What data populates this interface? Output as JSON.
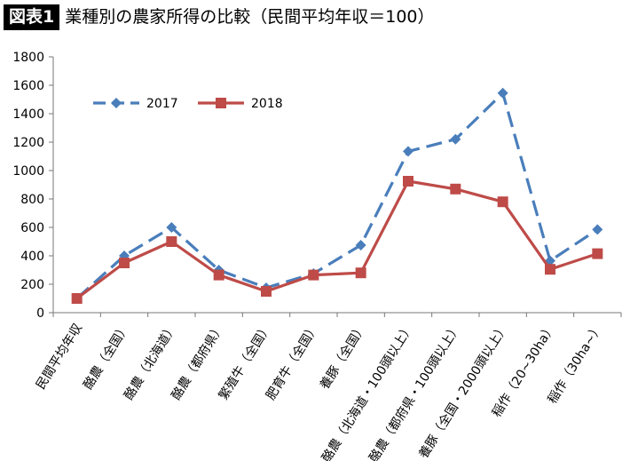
{
  "figure": {
    "badge": "図表1",
    "title": "業種別の農家所得の比較（民間平均年収＝100）"
  },
  "chart_data": {
    "type": "line",
    "title": "業種別の農家所得の比較（民間平均年収＝100）",
    "categories": [
      "民間平均年収",
      "酪農（全国）",
      "酪農（北海道）",
      "酪農（都府県）",
      "繁殖牛（全国）",
      "肥育牛（全国）",
      "養豚（全国）",
      "酪農（北海道・100頭以上）",
      "酪農（都府県・100頭以上）",
      "養豚（全国・2000頭以上）",
      "稲作（20~30ha）",
      "稲作（30ha~）"
    ],
    "series": [
      {
        "name": "2017",
        "color": "#4a7ebb",
        "marker": "diamond",
        "dash": "dashed",
        "values": [
          100,
          400,
          600,
          300,
          175,
          275,
          475,
          1135,
          1220,
          1545,
          365,
          585
        ]
      },
      {
        "name": "2018",
        "color": "#be4b48",
        "marker": "square",
        "dash": "solid",
        "values": [
          100,
          350,
          500,
          265,
          150,
          265,
          280,
          925,
          870,
          780,
          305,
          415
        ]
      }
    ],
    "yticks": [
      "0",
      "200",
      "400",
      "600",
      "800",
      "1000",
      "1200",
      "1400",
      "1600",
      "1800"
    ],
    "ylim": [
      0,
      1800
    ],
    "grid": false,
    "legend_position": "top-left"
  }
}
